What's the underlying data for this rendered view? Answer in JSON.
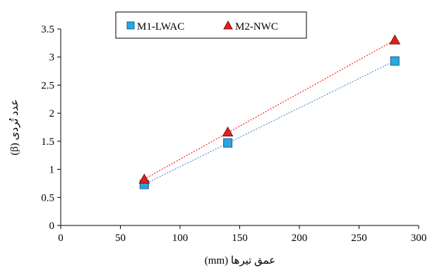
{
  "chart_data": {
    "type": "scatter",
    "xlabel": "عمق تیرها (mm)",
    "ylabel": "عدد تُردی (β)",
    "xlim": [
      0,
      300
    ],
    "ylim": [
      0,
      3.5
    ],
    "x_ticks": [
      "0",
      "50",
      "100",
      "150",
      "200",
      "250",
      "300"
    ],
    "y_ticks": [
      "0",
      "0.5",
      "1",
      "1.5",
      "2",
      "2.5",
      "3",
      "3.5"
    ],
    "grid": false,
    "legend_position": "top",
    "series": [
      {
        "name": "M1-LWAC",
        "marker": "square",
        "color": "#29a8e0",
        "trendline_color": "#5b9bd5",
        "x": [
          70,
          140,
          280
        ],
        "y": [
          0.73,
          1.47,
          2.93
        ]
      },
      {
        "name": "M2-NWC",
        "marker": "triangle",
        "color": "#e02020",
        "trendline_color": "#ff3333",
        "x": [
          70,
          140,
          280
        ],
        "y": [
          0.82,
          1.66,
          3.3
        ]
      }
    ]
  }
}
